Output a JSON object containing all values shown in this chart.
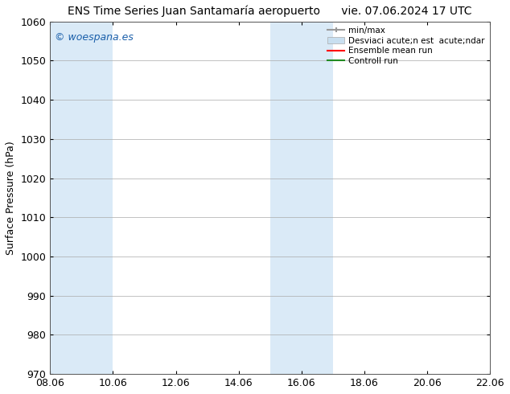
{
  "title_left": "ENS Time Series Juan Santamaría aeropuerto",
  "title_right": "vie. 07.06.2024 17 UTC",
  "ylabel": "Surface Pressure (hPa)",
  "ylim": [
    970,
    1060
  ],
  "yticks": [
    970,
    980,
    990,
    1000,
    1010,
    1020,
    1030,
    1040,
    1050,
    1060
  ],
  "xtick_labels": [
    "08.06",
    "10.06",
    "12.06",
    "14.06",
    "16.06",
    "18.06",
    "20.06",
    "22.06"
  ],
  "background_color": "#ffffff",
  "shaded_color": "#daeaf7",
  "watermark_text": "© woespana.es",
  "watermark_color": "#1a5faa",
  "figsize": [
    6.34,
    4.9
  ],
  "dpi": 100,
  "legend_label_minmax": "min/max",
  "legend_label_desv": "Desviaci acute;n est  acute;ndar",
  "legend_label_ens": "Ensemble mean run",
  "legend_label_ctrl": "Controll run",
  "minmax_color": "#999999",
  "ens_color": "#ff0000",
  "ctrl_color": "#228b22",
  "desv_color": "#c8dff0"
}
